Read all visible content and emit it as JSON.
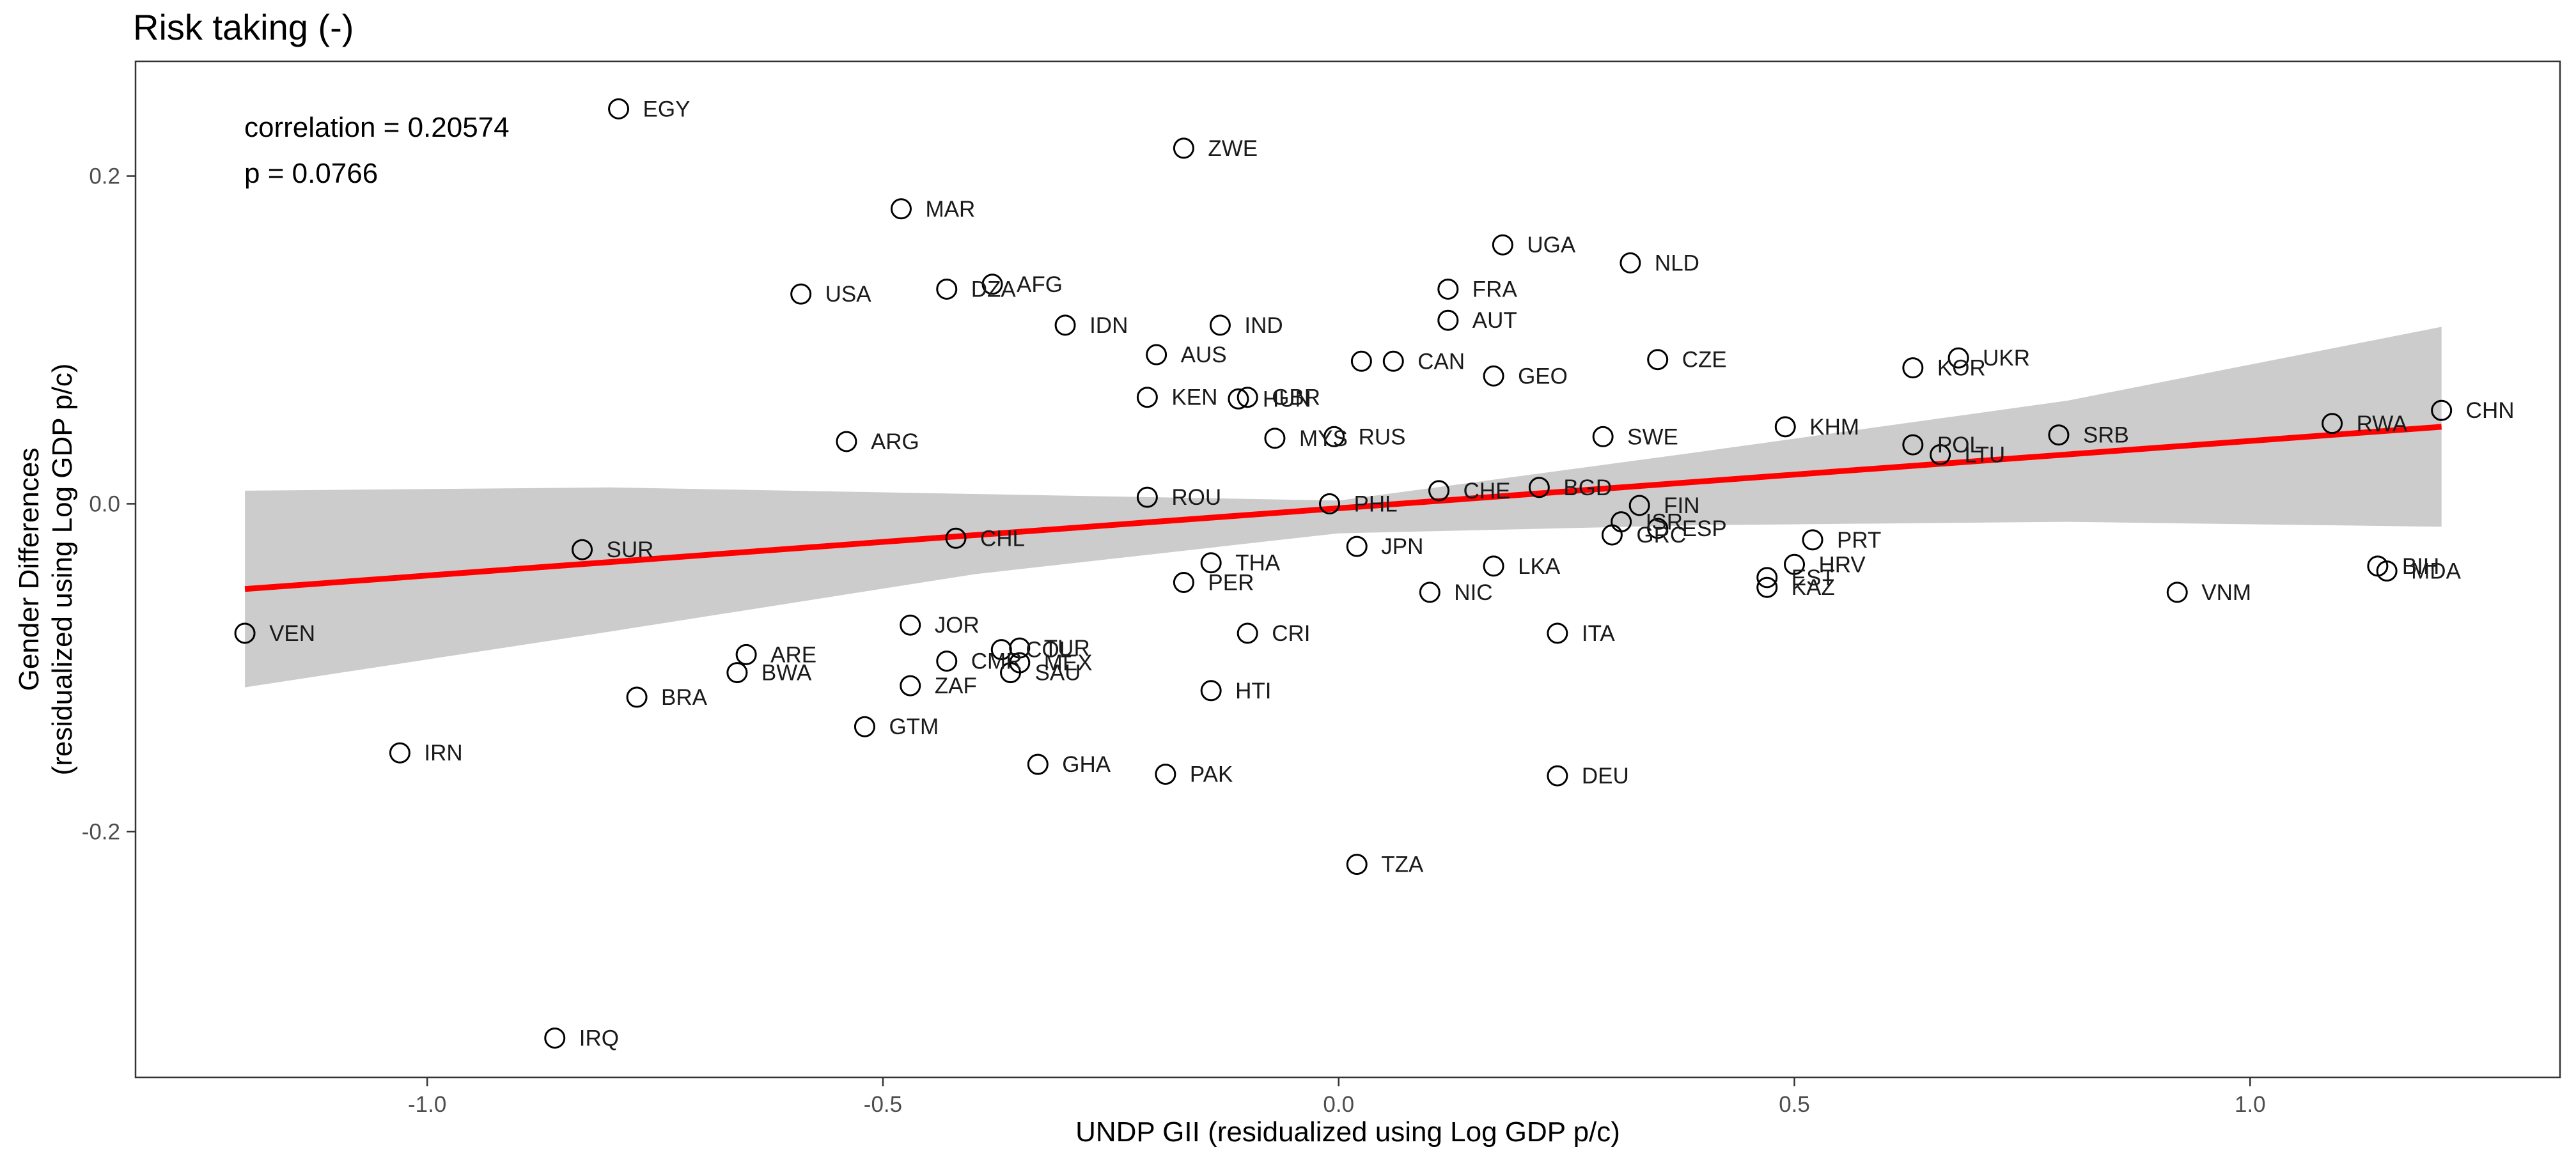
{
  "chart_data": {
    "type": "scatter",
    "title": "Risk taking (-)",
    "xlabel": "UNDP GII (residualized using Log GDP p/c)",
    "ylabel_lines": [
      "Gender Differences",
      "(residualized using Log GDP p/c)"
    ],
    "xlim": [
      -1.32,
      1.34
    ],
    "ylim": [
      -0.35,
      0.27
    ],
    "x_ticks": [
      -1.0,
      -0.5,
      0.0,
      0.5,
      1.0
    ],
    "x_tick_labels": [
      "-1.0",
      "-0.5",
      "0.0",
      "0.5",
      "1.0"
    ],
    "y_ticks": [
      -0.2,
      0.0,
      0.2
    ],
    "y_tick_labels": [
      "-0.2",
      "0.0",
      "0.2"
    ],
    "grid": false,
    "annotations": [
      "correlation = 0.20574",
      "p = 0.0766"
    ],
    "regression_line": {
      "color": "#ff0000",
      "x": [
        -1.2,
        1.21
      ],
      "y": [
        -0.052,
        0.047
      ]
    },
    "confidence_band": {
      "color": "#cccccc",
      "x": [
        -1.2,
        -0.8,
        -0.4,
        0.0,
        0.4,
        0.8,
        1.21
      ],
      "upper": [
        0.008,
        0.01,
        0.006,
        0.002,
        0.032,
        0.063,
        0.108
      ],
      "lower": [
        -0.112,
        -0.078,
        -0.043,
        -0.018,
        -0.013,
        -0.011,
        -0.014
      ]
    },
    "points": [
      {
        "label": "EGY",
        "x": -0.79,
        "y": 0.241
      },
      {
        "label": "ZWE",
        "x": -0.17,
        "y": 0.217
      },
      {
        "label": "MAR",
        "x": -0.48,
        "y": 0.18
      },
      {
        "label": "UGA",
        "x": 0.18,
        "y": 0.158
      },
      {
        "label": "NLD",
        "x": 0.32,
        "y": 0.147
      },
      {
        "label": "AFG",
        "x": -0.38,
        "y": 0.134
      },
      {
        "label": "DZA",
        "x": -0.43,
        "y": 0.131
      },
      {
        "label": "FRA",
        "x": 0.12,
        "y": 0.131
      },
      {
        "label": "USA",
        "x": -0.59,
        "y": 0.128
      },
      {
        "label": "AUT",
        "x": 0.12,
        "y": 0.112
      },
      {
        "label": "IDN",
        "x": -0.3,
        "y": 0.109
      },
      {
        "label": "IND",
        "x": -0.13,
        "y": 0.109
      },
      {
        "label": "AUS",
        "x": -0.2,
        "y": 0.091
      },
      {
        "label": "UKR",
        "x": 0.68,
        "y": 0.089
      },
      {
        "label": "CZE",
        "x": 0.35,
        "y": 0.088
      },
      {
        "label": "CAN",
        "x": 0.06,
        "y": 0.087
      },
      {
        "label": "",
        "x": 0.025,
        "y": 0.087
      },
      {
        "label": "KOR",
        "x": 0.63,
        "y": 0.083
      },
      {
        "label": "GEO",
        "x": 0.17,
        "y": 0.078
      },
      {
        "label": "KEN",
        "x": -0.21,
        "y": 0.065
      },
      {
        "label": "HUN",
        "x": -0.11,
        "y": 0.064
      },
      {
        "label": "GBR",
        "x": -0.1,
        "y": 0.065
      },
      {
        "label": "CHN",
        "x": 1.21,
        "y": 0.057
      },
      {
        "label": "RWA",
        "x": 1.09,
        "y": 0.049
      },
      {
        "label": "KHM",
        "x": 0.49,
        "y": 0.047
      },
      {
        "label": "SRB",
        "x": 0.79,
        "y": 0.042
      },
      {
        "label": "MYS",
        "x": -0.07,
        "y": 0.04
      },
      {
        "label": "RUS",
        "x": -0.005,
        "y": 0.041
      },
      {
        "label": "SWE",
        "x": 0.29,
        "y": 0.041
      },
      {
        "label": "ARG",
        "x": -0.54,
        "y": 0.038
      },
      {
        "label": "POL",
        "x": 0.63,
        "y": 0.036
      },
      {
        "label": "LTU",
        "x": 0.66,
        "y": 0.03
      },
      {
        "label": "BGD",
        "x": 0.22,
        "y": 0.01
      },
      {
        "label": "CHE",
        "x": 0.11,
        "y": 0.008
      },
      {
        "label": "ROU",
        "x": -0.21,
        "y": 0.004
      },
      {
        "label": "PHL",
        "x": -0.01,
        "y": 0.0
      },
      {
        "label": "FIN",
        "x": 0.33,
        "y": -0.001
      },
      {
        "label": "ISR",
        "x": 0.31,
        "y": -0.011
      },
      {
        "label": "ESP",
        "x": 0.35,
        "y": -0.015
      },
      {
        "label": "GRC",
        "x": 0.3,
        "y": -0.019
      },
      {
        "label": "CHL",
        "x": -0.42,
        "y": -0.021
      },
      {
        "label": "PRT",
        "x": 0.52,
        "y": -0.022
      },
      {
        "label": "JPN",
        "x": 0.02,
        "y": -0.026
      },
      {
        "label": "SUR",
        "x": -0.83,
        "y": -0.028
      },
      {
        "label": "THA",
        "x": -0.14,
        "y": -0.036
      },
      {
        "label": "HRV",
        "x": 0.5,
        "y": -0.037
      },
      {
        "label": "LKA",
        "x": 0.17,
        "y": -0.038
      },
      {
        "label": "BIH",
        "x": 1.14,
        "y": -0.038
      },
      {
        "label": "MDA",
        "x": 1.15,
        "y": -0.041
      },
      {
        "label": "EST",
        "x": 0.47,
        "y": -0.045
      },
      {
        "label": "PER",
        "x": -0.17,
        "y": -0.048
      },
      {
        "label": "KAZ",
        "x": 0.47,
        "y": -0.051
      },
      {
        "label": "NIC",
        "x": 0.1,
        "y": -0.054
      },
      {
        "label": "VNM",
        "x": 0.92,
        "y": -0.054
      },
      {
        "label": "JOR",
        "x": -0.47,
        "y": -0.074
      },
      {
        "label": "VEN",
        "x": -1.2,
        "y": -0.079
      },
      {
        "label": "CRI",
        "x": -0.1,
        "y": -0.079
      },
      {
        "label": "ITA",
        "x": 0.24,
        "y": -0.079
      },
      {
        "label": "COL",
        "x": -0.37,
        "y": -0.089
      },
      {
        "label": "TUR",
        "x": -0.35,
        "y": -0.088
      },
      {
        "label": "ARE",
        "x": -0.65,
        "y": -0.092
      },
      {
        "label": "CMR",
        "x": -0.43,
        "y": -0.096
      },
      {
        "label": "MEX",
        "x": -0.35,
        "y": -0.097
      },
      {
        "label": "BWA",
        "x": -0.66,
        "y": -0.103
      },
      {
        "label": "SAU",
        "x": -0.36,
        "y": -0.103
      },
      {
        "label": "ZAF",
        "x": -0.47,
        "y": -0.111
      },
      {
        "label": "HTI",
        "x": -0.14,
        "y": -0.114
      },
      {
        "label": "BRA",
        "x": -0.77,
        "y": -0.118
      },
      {
        "label": "GTM",
        "x": -0.52,
        "y": -0.136
      },
      {
        "label": "IRN",
        "x": -1.03,
        "y": -0.152
      },
      {
        "label": "GHA",
        "x": -0.33,
        "y": -0.159
      },
      {
        "label": "PAK",
        "x": -0.19,
        "y": -0.165
      },
      {
        "label": "DEU",
        "x": 0.24,
        "y": -0.166
      },
      {
        "label": "TZA",
        "x": 0.02,
        "y": -0.22
      },
      {
        "label": "IRQ",
        "x": -0.86,
        "y": -0.326
      }
    ]
  }
}
